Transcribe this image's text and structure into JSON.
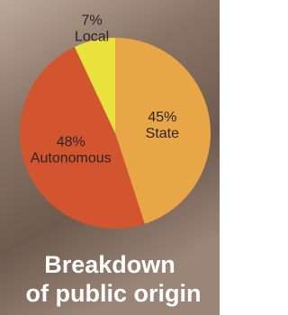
{
  "chart_data": {
    "type": "pie",
    "title": [
      "Breakdown",
      "of public origin"
    ],
    "categories": [
      "State",
      "Autonomous",
      "Local"
    ],
    "values": [
      45,
      48,
      7
    ],
    "value_labels": [
      "45%",
      "48%",
      "7%"
    ],
    "colors": [
      "#e9a646",
      "#d3552f",
      "#e9e23c"
    ]
  }
}
